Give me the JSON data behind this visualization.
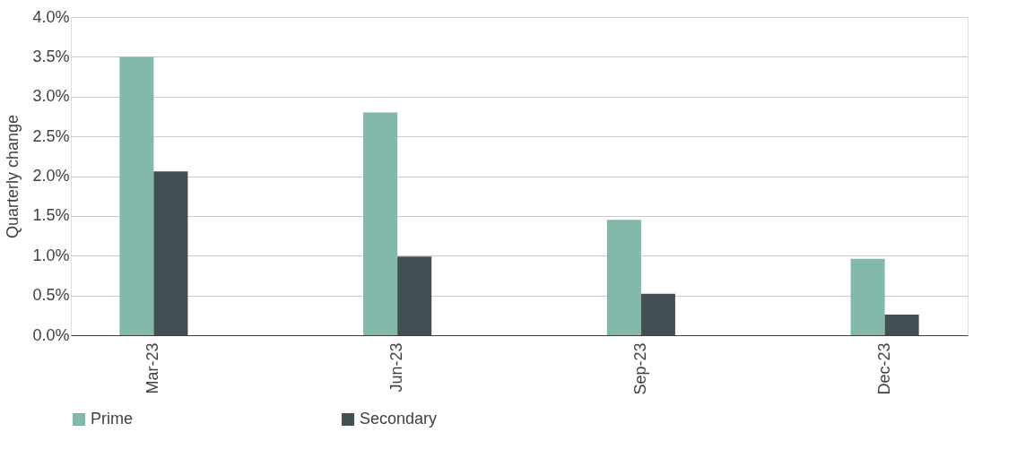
{
  "chart_data": {
    "type": "bar",
    "ylabel": "Quarterly change",
    "categories": [
      "Mar-23",
      "Jun-23",
      "Sep-23",
      "Dec-23"
    ],
    "series": [
      {
        "name": "Prime",
        "color": "#82b9aa",
        "values": [
          3.5,
          2.8,
          1.45,
          0.96
        ]
      },
      {
        "name": "Secondary",
        "color": "#435053",
        "values": [
          2.06,
          0.99,
          0.52,
          0.26
        ]
      }
    ],
    "ylim": [
      0,
      4
    ],
    "yticks": [
      {
        "value": 0,
        "label": "0.0%"
      },
      {
        "value": 0.5,
        "label": "0.5%"
      },
      {
        "value": 1,
        "label": "1.0%"
      },
      {
        "value": 1.5,
        "label": "1.5%"
      },
      {
        "value": 2,
        "label": "2.0%"
      },
      {
        "value": 2.5,
        "label": "2.5%"
      },
      {
        "value": 3,
        "label": "3.0%"
      },
      {
        "value": 3.5,
        "label": "3.5%"
      },
      {
        "value": 4,
        "label": "4.0%"
      }
    ],
    "grid": "y",
    "legend": "bottom"
  }
}
